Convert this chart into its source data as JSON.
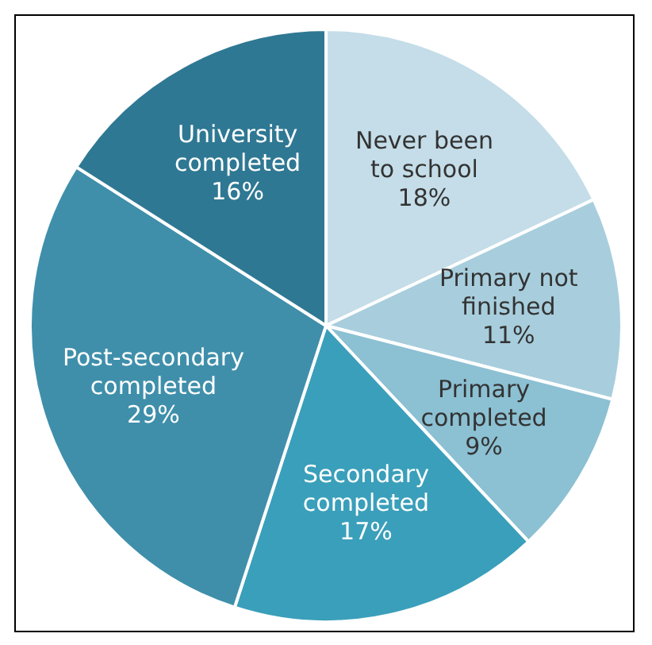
{
  "chart_data": {
    "type": "pie",
    "categories": [
      "Never been to school",
      "Primary not finished",
      "Primary completed",
      "Secondary completed",
      "Post-secondary completed",
      "University completed"
    ],
    "values": [
      18,
      11,
      9,
      17,
      29,
      16
    ],
    "colors": [
      "#c4dde8",
      "#a8cedd",
      "#8cc0d3",
      "#3a9fba",
      "#3f8fab",
      "#2f7893"
    ],
    "value_labels": [
      "18%",
      "11%",
      "9%",
      "17%",
      "29%",
      "16%"
    ],
    "legend": false
  }
}
